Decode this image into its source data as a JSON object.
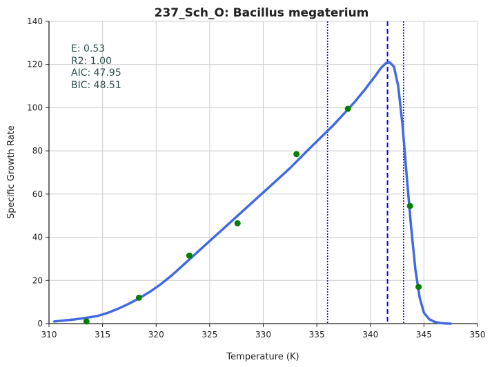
{
  "chart_data": {
    "type": "line",
    "title": "237_Sch_O: Bacillus megaterium",
    "xlabel": "Temperature (K)",
    "ylabel": "Specific Growth Rate",
    "xlim": [
      310,
      350
    ],
    "ylim": [
      0,
      140
    ],
    "x_ticks": [
      310,
      315,
      320,
      325,
      330,
      335,
      340,
      345,
      350
    ],
    "y_ticks": [
      0,
      20,
      40,
      60,
      80,
      100,
      120,
      140
    ],
    "grid": true,
    "stats": [
      "E:  0.53",
      "R2:  1.00",
      "AIC: 47.95",
      "BIC: 48.51"
    ],
    "observed_points": {
      "color": "#008000",
      "x": [
        313.5,
        318.4,
        323.1,
        327.6,
        333.1,
        337.9,
        343.7,
        344.5
      ],
      "y": [
        1.0,
        12.0,
        31.5,
        46.5,
        78.5,
        99.5,
        54.5,
        17.0
      ]
    },
    "fitted_curve": {
      "color": "#4169e1",
      "x": [
        310.5,
        311.5,
        312.5,
        313.5,
        314.5,
        315.5,
        316.5,
        317.5,
        318.5,
        319.5,
        320.5,
        321.5,
        322.5,
        323.5,
        324.5,
        325.5,
        326.5,
        327.5,
        328.5,
        329.5,
        330.5,
        331.5,
        332.5,
        333.5,
        334.5,
        335.5,
        336.5,
        337.5,
        338.5,
        339.5,
        340.0,
        340.5,
        341.0,
        341.5,
        341.8,
        342.2,
        342.6,
        343.0,
        343.4,
        343.8,
        344.2,
        344.6,
        345.0,
        345.5,
        346.0,
        346.5,
        347.0,
        347.5
      ],
      "y": [
        1.0,
        1.5,
        2.0,
        2.7,
        3.5,
        5.0,
        7.0,
        9.3,
        12.0,
        15.0,
        18.5,
        22.5,
        27.0,
        31.5,
        36.0,
        40.5,
        45.0,
        49.5,
        54.0,
        58.5,
        63.0,
        67.5,
        72.0,
        77.0,
        82.0,
        86.8,
        91.7,
        97.0,
        102.5,
        108.5,
        111.8,
        115.0,
        118.5,
        120.8,
        121.0,
        119.0,
        110.0,
        92.0,
        68.0,
        45.0,
        25.0,
        12.0,
        5.0,
        2.0,
        0.8,
        0.3,
        0.1,
        0.0
      ]
    },
    "vlines": [
      {
        "x": 341.6,
        "style": "dashed",
        "color": "#0000ff"
      },
      {
        "x": 336.0,
        "style": "dotted",
        "color": "#0000ff"
      },
      {
        "x": 343.1,
        "style": "dotted",
        "color": "#0000ff"
      }
    ]
  }
}
